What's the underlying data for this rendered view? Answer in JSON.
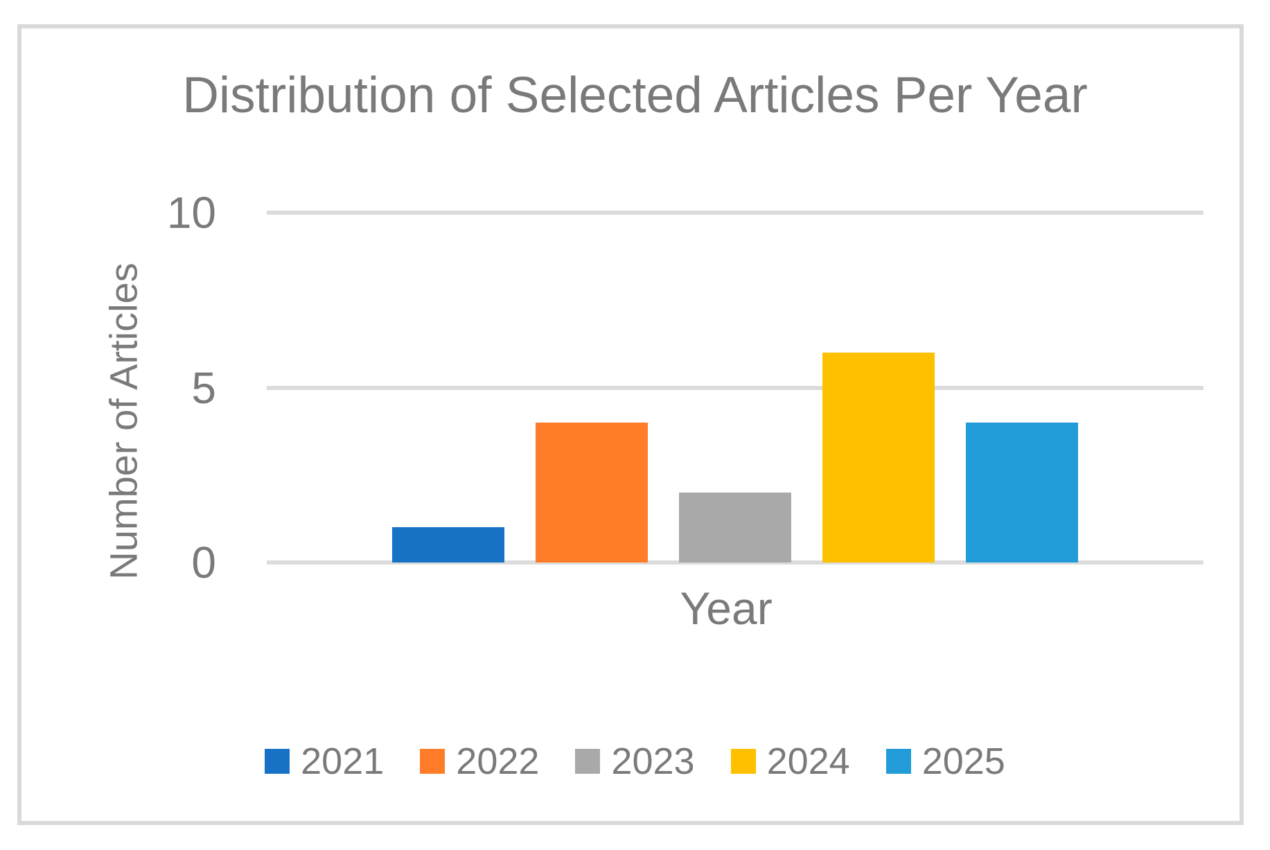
{
  "chart_data": {
    "type": "bar",
    "title": "Distribution of Selected Articles Per Year",
    "xlabel": "Year",
    "ylabel": "Number of Articles",
    "categories": [
      "2021",
      "2022",
      "2023",
      "2024",
      "2025"
    ],
    "values": [
      1,
      4,
      2,
      6,
      4
    ],
    "bar_colors": [
      "#1772C6",
      "#FF7D29",
      "#A9A9A9",
      "#FFC000",
      "#219CD8"
    ],
    "yticks": [
      0,
      5,
      10
    ],
    "ylim": [
      0,
      10
    ],
    "grid": "horizontal",
    "legend_position": "bottom",
    "legend": [
      "2021",
      "2022",
      "2023",
      "2024",
      "2025"
    ]
  },
  "theme": {
    "background": "#FFFFFF",
    "text_color": "#7A7A7A",
    "grid_color": "#DCDCDC",
    "border_color": "#D9D9D9"
  }
}
